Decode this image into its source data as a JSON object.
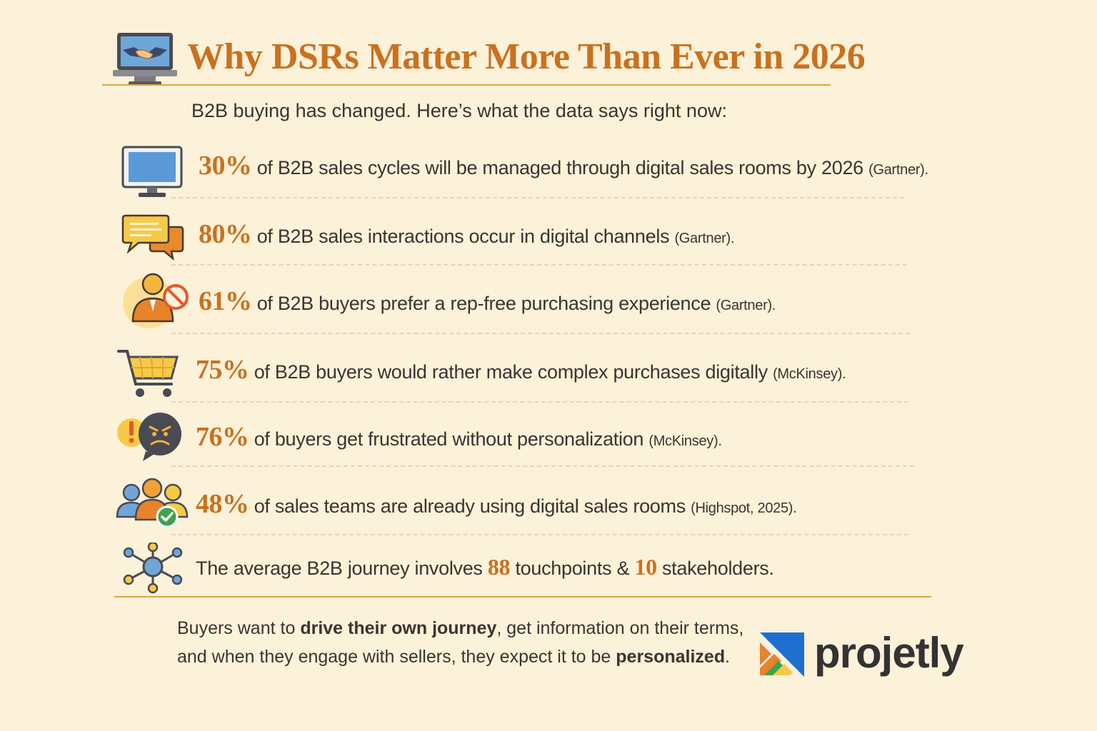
{
  "header": {
    "title": "Why DSRs Matter More Than Ever in 2026",
    "subtitle": "B2B buying has changed. Here’s what the data says right now:",
    "icon": "laptop-handshake-icon"
  },
  "stats": [
    {
      "icon": "monitor-icon",
      "pct": "30%",
      "text": " of B2B sales cycles will be managed through digital sales rooms by 2026 ",
      "source": "(Gartner)."
    },
    {
      "icon": "chat-bubbles-icon",
      "pct": "80%",
      "text": " of B2B sales interactions occur in digital channels ",
      "source": "(Gartner)."
    },
    {
      "icon": "person-no-rep-icon",
      "pct": "61%",
      "text": " of B2B buyers prefer a rep-free purchasing experience ",
      "source": "(Gartner)."
    },
    {
      "icon": "shopping-cart-icon",
      "pct": "75%",
      "text": " of B2B buyers would rather make complex purchases digitally ",
      "source": "(McKinsey)."
    },
    {
      "icon": "frustrated-face-icon",
      "pct": "76%",
      "text": " of buyers get frustrated without personalization ",
      "source": "(McKinsey)."
    },
    {
      "icon": "team-check-icon",
      "pct": "48%",
      "text": " of sales teams are already using digital sales rooms ",
      "source": "(Highspot, 2025)."
    }
  ],
  "journey": {
    "icon": "network-nodes-icon",
    "text_a": "The average B2B journey involves ",
    "touchpoints": "88",
    "text_b": " touchpoints & ",
    "stakeholders": "10",
    "text_c": " stakeholders."
  },
  "closing": {
    "line1_a": "Buyers want to ",
    "line1_bold": "drive their own journey",
    "line1_b": ", get information on their terms,",
    "line2_a": "and when they engage with sellers, they expect it to be ",
    "line2_bold": "personalized",
    "line2_b": "."
  },
  "brand": {
    "name": "projetly",
    "logo_icon": "projetly-logo-icon"
  },
  "colors": {
    "background": "#fcf1d9",
    "accent": "#c9711f",
    "rule": "#d9a642",
    "text": "#3a3431"
  }
}
